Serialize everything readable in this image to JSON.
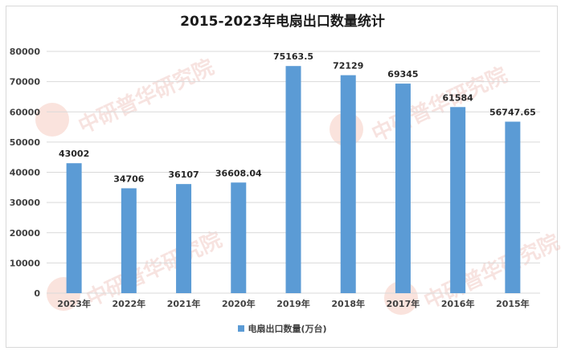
{
  "chart_data": {
    "type": "bar",
    "title": "2015-2023年电扇出口数量统计",
    "categories": [
      "2023年",
      "2022年",
      "2021年",
      "2020年",
      "2019年",
      "2018年",
      "2017年",
      "2016年",
      "2015年"
    ],
    "series": [
      {
        "name": "电扇出口数量(万台)",
        "values": [
          43002,
          34706,
          36107,
          36608.04,
          75163.5,
          72129,
          69345,
          61584,
          56747.65
        ],
        "labels": [
          "43002",
          "34706",
          "36107",
          "36608.04",
          "75163.5",
          "72129",
          "69345",
          "61584",
          "56747.65"
        ],
        "color": "#5b9bd5"
      }
    ],
    "yticks": [
      "0",
      "10000",
      "20000",
      "30000",
      "40000",
      "50000",
      "60000",
      "70000",
      "80000"
    ],
    "ylim": [
      0,
      80000
    ],
    "grid": true,
    "legend_position": "bottom"
  }
}
